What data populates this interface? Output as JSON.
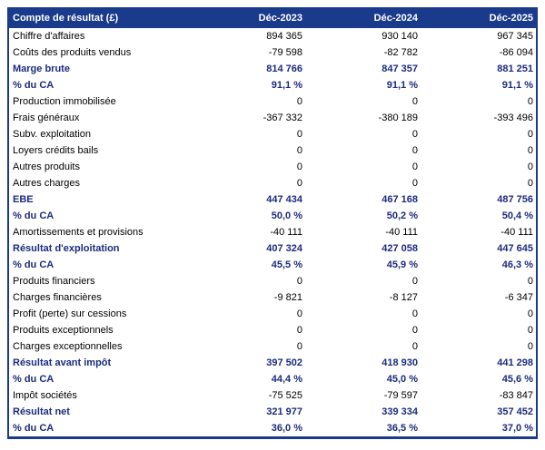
{
  "table": {
    "header": {
      "label": "Compte de résultat (£)",
      "columns": [
        "Déc-2023",
        "Déc-2024",
        "Déc-2025"
      ]
    },
    "rows": [
      {
        "label": "Chiffre d'affaires",
        "values": [
          "894 365",
          "930 140",
          "967 345"
        ],
        "bold": false
      },
      {
        "label": "Coûts des produits vendus",
        "values": [
          "-79 598",
          "-82 782",
          "-86 094"
        ],
        "bold": false
      },
      {
        "label": "Marge brute",
        "values": [
          "814 766",
          "847 357",
          "881 251"
        ],
        "bold": true
      },
      {
        "label": "% du CA",
        "values": [
          "91,1 %",
          "91,1 %",
          "91,1 %"
        ],
        "bold": true
      },
      {
        "label": "Production immobilisée",
        "values": [
          "0",
          "0",
          "0"
        ],
        "bold": false
      },
      {
        "label": "Frais généraux",
        "values": [
          "-367 332",
          "-380 189",
          "-393 496"
        ],
        "bold": false
      },
      {
        "label": "Subv. exploitation",
        "values": [
          "0",
          "0",
          "0"
        ],
        "bold": false
      },
      {
        "label": "Loyers crédits bails",
        "values": [
          "0",
          "0",
          "0"
        ],
        "bold": false
      },
      {
        "label": "Autres produits",
        "values": [
          "0",
          "0",
          "0"
        ],
        "bold": false
      },
      {
        "label": "Autres charges",
        "values": [
          "0",
          "0",
          "0"
        ],
        "bold": false
      },
      {
        "label": "EBE",
        "values": [
          "447 434",
          "467 168",
          "487 756"
        ],
        "bold": true
      },
      {
        "label": "% du CA",
        "values": [
          "50,0 %",
          "50,2 %",
          "50,4 %"
        ],
        "bold": true
      },
      {
        "label": "Amortissements et provisions",
        "values": [
          "-40 111",
          "-40 111",
          "-40 111"
        ],
        "bold": false
      },
      {
        "label": "Résultat d'exploitation",
        "values": [
          "407 324",
          "427 058",
          "447 645"
        ],
        "bold": true
      },
      {
        "label": "% du CA",
        "values": [
          "45,5 %",
          "45,9 %",
          "46,3 %"
        ],
        "bold": true
      },
      {
        "label": "Produits financiers",
        "values": [
          "0",
          "0",
          "0"
        ],
        "bold": false
      },
      {
        "label": "Charges financières",
        "values": [
          "-9 821",
          "-8 127",
          "-6 347"
        ],
        "bold": false
      },
      {
        "label": "Profit (perte) sur cessions",
        "values": [
          "0",
          "0",
          "0"
        ],
        "bold": false
      },
      {
        "label": "Produits exceptionnels",
        "values": [
          "0",
          "0",
          "0"
        ],
        "bold": false
      },
      {
        "label": "Charges exceptionnelles",
        "values": [
          "0",
          "0",
          "0"
        ],
        "bold": false
      },
      {
        "label": "Résultat avant impôt",
        "values": [
          "397 502",
          "418 930",
          "441 298"
        ],
        "bold": true
      },
      {
        "label": "% du CA",
        "values": [
          "44,4 %",
          "45,0 %",
          "45,6 %"
        ],
        "bold": true
      },
      {
        "label": "Impôt sociétés",
        "values": [
          "-75 525",
          "-79 597",
          "-83 847"
        ],
        "bold": false
      },
      {
        "label": "Résultat net",
        "values": [
          "321 977",
          "339 334",
          "357 452"
        ],
        "bold": true
      },
      {
        "label": "% du CA",
        "values": [
          "36,0 %",
          "36,5 %",
          "37,0 %"
        ],
        "bold": true
      }
    ],
    "colors": {
      "header_bg": "#1A3A8C",
      "header_text": "#FFFFFF",
      "bold_text": "#1C2B7F",
      "body_text": "#000000",
      "border": "#1A3A8C"
    }
  },
  "chart_data": {
    "type": "table",
    "title": "Compte de résultat (£)",
    "columns": [
      "Déc-2023",
      "Déc-2024",
      "Déc-2025"
    ],
    "rows": [
      {
        "label": "Chiffre d'affaires",
        "values": [
          894365,
          930140,
          967345
        ]
      },
      {
        "label": "Coûts des produits vendus",
        "values": [
          -79598,
          -82782,
          -86094
        ]
      },
      {
        "label": "Marge brute",
        "values": [
          814766,
          847357,
          881251
        ]
      },
      {
        "label": "% du CA (marge brute)",
        "values": [
          91.1,
          91.1,
          91.1
        ],
        "unit": "%"
      },
      {
        "label": "Production immobilisée",
        "values": [
          0,
          0,
          0
        ]
      },
      {
        "label": "Frais généraux",
        "values": [
          -367332,
          -380189,
          -393496
        ]
      },
      {
        "label": "Subv. exploitation",
        "values": [
          0,
          0,
          0
        ]
      },
      {
        "label": "Loyers crédits bails",
        "values": [
          0,
          0,
          0
        ]
      },
      {
        "label": "Autres produits",
        "values": [
          0,
          0,
          0
        ]
      },
      {
        "label": "Autres charges",
        "values": [
          0,
          0,
          0
        ]
      },
      {
        "label": "EBE",
        "values": [
          447434,
          467168,
          487756
        ]
      },
      {
        "label": "% du CA (EBE)",
        "values": [
          50.0,
          50.2,
          50.4
        ],
        "unit": "%"
      },
      {
        "label": "Amortissements et provisions",
        "values": [
          -40111,
          -40111,
          -40111
        ]
      },
      {
        "label": "Résultat d'exploitation",
        "values": [
          407324,
          427058,
          447645
        ]
      },
      {
        "label": "% du CA (résultat d'exploitation)",
        "values": [
          45.5,
          45.9,
          46.3
        ],
        "unit": "%"
      },
      {
        "label": "Produits financiers",
        "values": [
          0,
          0,
          0
        ]
      },
      {
        "label": "Charges financières",
        "values": [
          -9821,
          -8127,
          -6347
        ]
      },
      {
        "label": "Profit (perte) sur cessions",
        "values": [
          0,
          0,
          0
        ]
      },
      {
        "label": "Produits exceptionnels",
        "values": [
          0,
          0,
          0
        ]
      },
      {
        "label": "Charges exceptionnelles",
        "values": [
          0,
          0,
          0
        ]
      },
      {
        "label": "Résultat avant impôt",
        "values": [
          397502,
          418930,
          441298
        ]
      },
      {
        "label": "% du CA (résultat avant impôt)",
        "values": [
          44.4,
          45.0,
          45.6
        ],
        "unit": "%"
      },
      {
        "label": "Impôt sociétés",
        "values": [
          -75525,
          -79597,
          -83847
        ]
      },
      {
        "label": "Résultat net",
        "values": [
          321977,
          339334,
          357452
        ]
      },
      {
        "label": "% du CA (résultat net)",
        "values": [
          36.0,
          36.5,
          37.0
        ],
        "unit": "%"
      }
    ]
  }
}
